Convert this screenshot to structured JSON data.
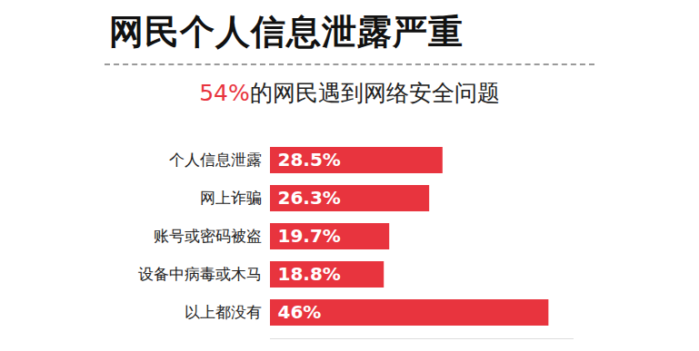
{
  "chart_data": {
    "type": "bar",
    "orientation": "horizontal",
    "title": "网民个人信息泄露严重",
    "subtitle": "54%的网民遇到网络安全问题",
    "categories": [
      "个人信息泄露",
      "网上诈骗",
      "账号或密码被盗",
      "设备中病毒或木马",
      "以上都没有"
    ],
    "values": [
      28.5,
      26.3,
      19.7,
      18.8,
      46
    ],
    "value_labels": [
      "28.5%",
      "26.3%",
      "19.7%",
      "18.8%",
      "46%"
    ],
    "data_labels": true,
    "color": "#e8343e",
    "xlim": [
      0,
      50
    ],
    "xticks": [],
    "tick_labels": "y"
  }
}
